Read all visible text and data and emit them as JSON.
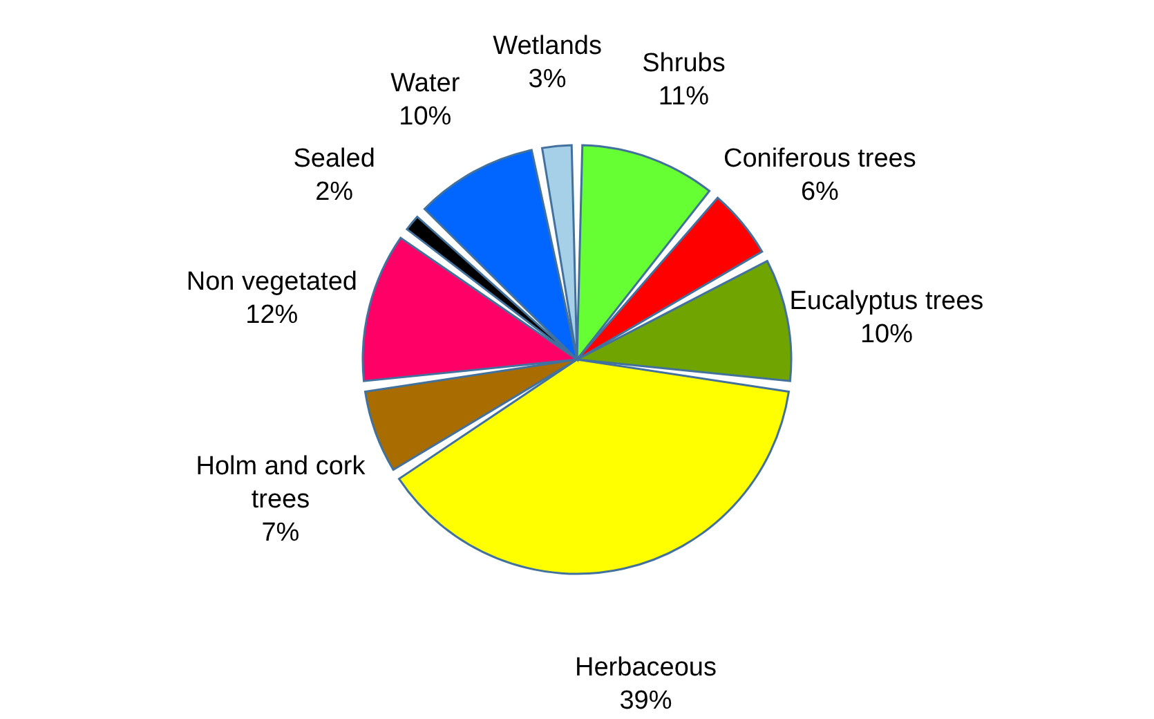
{
  "chart_data": {
    "type": "pie",
    "categories": [
      "Shrubs",
      "Coniferous trees",
      "Eucalyptus trees",
      "Herbaceous",
      "Holm and cork trees",
      "Non vegetated",
      "Sealed",
      "Water",
      "Wetlands"
    ],
    "values": [
      11,
      6,
      10,
      39,
      7,
      12,
      2,
      10,
      3
    ],
    "value_labels": [
      "11%",
      "6%",
      "10%",
      "39%",
      "7%",
      "12%",
      "2%",
      "10%",
      "3%"
    ],
    "colors": [
      "#66ff33",
      "#ff0000",
      "#70a400",
      "#ffff00",
      "#a86c00",
      "#ff0066",
      "#000000",
      "#0066ff",
      "#a6cfe8"
    ]
  }
}
